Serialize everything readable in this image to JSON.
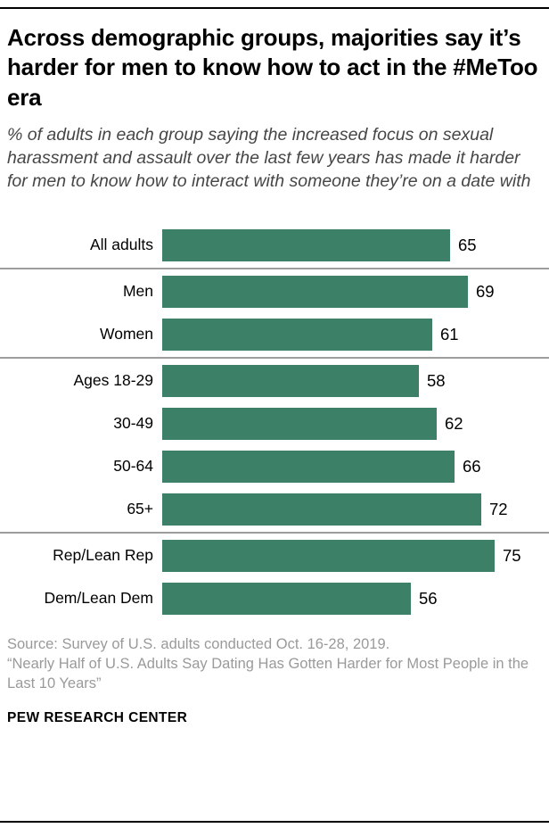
{
  "accent_color": "#3c8067",
  "header": {
    "title": "Across demographic groups, majorities say it’s harder for men to know how to act in the #MeToo era",
    "subtitle": "% of adults in each group saying the increased focus on sexual harassment and assault over the last few years has made it harder for men to know how to interact with someone they’re on a date with"
  },
  "chart_data": {
    "type": "bar",
    "orientation": "horizontal",
    "categories": [
      "All adults",
      "Men",
      "Women",
      "Ages 18-29",
      "30-49",
      "50-64",
      "65+",
      "Rep/Lean Rep",
      "Dem/Lean Dem"
    ],
    "values": [
      65,
      69,
      61,
      58,
      62,
      66,
      72,
      75,
      56
    ],
    "xlim": [
      0,
      75
    ],
    "bar_color": "#3c8067",
    "value_labels": true,
    "grid": false,
    "separators_after": [
      "All adults",
      "Women",
      "65+"
    ],
    "title": "Across demographic groups, majorities say it’s harder for men to know how to act in the #MeToo era",
    "xlabel": "",
    "ylabel": ""
  },
  "footer": {
    "source_line1": "Source: Survey of U.S. adults conducted Oct. 16-28, 2019.",
    "source_line2": "“Nearly Half of U.S. Adults Say Dating Has Gotten Harder for Most People in the Last 10 Years”",
    "brand": "PEW RESEARCH CENTER"
  }
}
